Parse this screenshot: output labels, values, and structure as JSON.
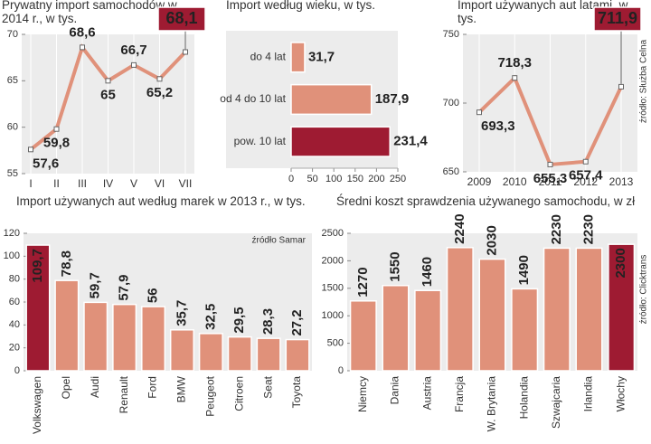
{
  "chart_data": [
    {
      "type": "line",
      "title": "Prywatny import samochodów w 2014 r., w tys.",
      "categories": [
        "I",
        "II",
        "III",
        "IV",
        "V",
        "VI",
        "VII"
      ],
      "values": [
        57.6,
        59.8,
        68.6,
        65,
        66.7,
        65.2,
        68.1
      ],
      "value_labels": [
        "57,6",
        "59,8",
        "68,6",
        "65",
        "66,7",
        "65,2",
        "68,1"
      ],
      "ylim": [
        55,
        70
      ],
      "yticks": [
        55,
        60,
        65,
        70
      ],
      "color": "#e0917a",
      "highlight": 6,
      "highlight_color": "#9e1b32"
    },
    {
      "type": "hbar",
      "title": "Import według wieku, w tys.",
      "categories": [
        "do 4 lat",
        "od 4 do 10 lat",
        "pow. 10 lat"
      ],
      "values": [
        31.7,
        187.9,
        231.4
      ],
      "value_labels": [
        "31,7",
        "187,9",
        "231,4"
      ],
      "colors": [
        "#e0917a",
        "#e0917a",
        "#9e1b32"
      ],
      "xlim": [
        0,
        250
      ],
      "xticks": [
        0,
        50,
        100,
        150,
        200,
        250
      ]
    },
    {
      "type": "line",
      "title": "Import używanych aut latami, w tys.",
      "categories": [
        "2009",
        "2010",
        "2011",
        "2012",
        "2013"
      ],
      "values": [
        693.3,
        718.3,
        655.3,
        657.4,
        711.9
      ],
      "value_labels": [
        "693,3",
        "718,3",
        "655,3",
        "657,4",
        "711,9"
      ],
      "ylim": [
        650,
        750
      ],
      "yticks": [
        650,
        700,
        750
      ],
      "color": "#e0917a",
      "highlight": 4,
      "highlight_color": "#9e1b32",
      "source": "źródło: Służba Celna"
    },
    {
      "type": "bar",
      "title": "Import używanych aut według marek w 2013 r., w tys.",
      "categories": [
        "Volkswagen",
        "Opel",
        "Audi",
        "Renault",
        "Ford",
        "BMW",
        "Peugeot",
        "Citroen",
        "Seat",
        "Toyota"
      ],
      "values": [
        109.7,
        78.8,
        59.7,
        57.9,
        56,
        35.7,
        32.5,
        29.5,
        28.3,
        27.2
      ],
      "value_labels": [
        "109,7",
        "78,8",
        "59,7",
        "57,9",
        "56",
        "35,7",
        "32,5",
        "29,5",
        "28,3",
        "27,2"
      ],
      "colors": [
        "#9e1b32",
        "#e0917a",
        "#e0917a",
        "#e0917a",
        "#e0917a",
        "#e0917a",
        "#e0917a",
        "#e0917a",
        "#e0917a",
        "#e0917a"
      ],
      "ylim": [
        0,
        120
      ],
      "yticks": [
        0,
        20,
        40,
        60,
        80,
        100,
        120
      ],
      "source": "źródło Samar"
    },
    {
      "type": "bar",
      "title": "Średni koszt sprawdzenia używanego samochodu, w zł",
      "categories": [
        "Niemcy",
        "Dania",
        "Austria",
        "Francja",
        "W. Brytania",
        "Holandia",
        "Szwajcaria",
        "Irlandia",
        "Włochy"
      ],
      "values": [
        1270,
        1550,
        1460,
        2240,
        2030,
        1490,
        2230,
        2230,
        2300
      ],
      "colors": [
        "#e0917a",
        "#e0917a",
        "#e0917a",
        "#e0917a",
        "#e0917a",
        "#e0917a",
        "#e0917a",
        "#e0917a",
        "#9e1b32"
      ],
      "ylim": [
        0,
        2500
      ],
      "yticks": [
        0,
        500,
        1000,
        1500,
        2000,
        2500
      ],
      "source": "źródło: Clicktrans"
    }
  ]
}
